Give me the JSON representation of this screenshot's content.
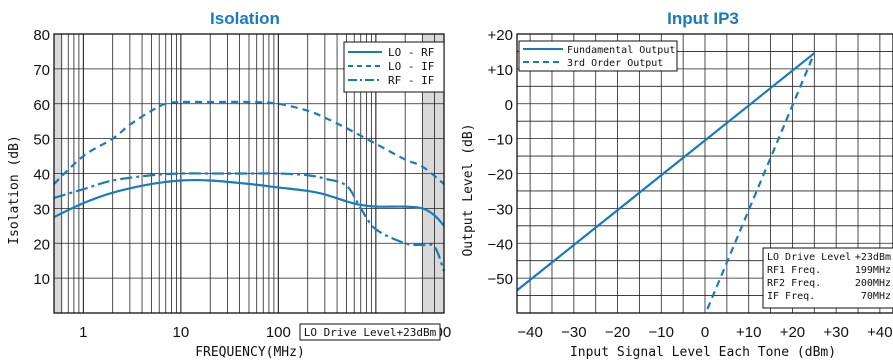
{
  "chart_data": [
    {
      "type": "line",
      "title": "Isolation",
      "xlabel": "FREQUENCY(MHz)",
      "ylabel": "Isolation (dB)",
      "x_scale": "log",
      "xlim": [
        0.5,
        5000
      ],
      "ylim": [
        0,
        80
      ],
      "grid": true,
      "legend_position": "top-right",
      "x_ticks": [
        "1",
        "10",
        "100",
        "1000",
        "4000"
      ],
      "y_ticks": [
        "10",
        "20",
        "30",
        "40",
        "50",
        "60",
        "70",
        "80"
      ],
      "annotation": "LO Drive Level+23dBm",
      "colors": {
        "line": "#1a7abf",
        "shade": "#d9d9d9"
      },
      "series": [
        {
          "name": "LO - RF",
          "style": "solid",
          "x": [
            0.5,
            1,
            2,
            5,
            10,
            20,
            50,
            100,
            200,
            300,
            500,
            700,
            1000,
            2000,
            3000,
            4000,
            5000
          ],
          "y": [
            27.5,
            31.5,
            34.5,
            37,
            38,
            38,
            37,
            36,
            35,
            34,
            32,
            31,
            30.5,
            30.5,
            30,
            28,
            25
          ]
        },
        {
          "name": "LO - IF",
          "style": "dash",
          "x": [
            0.5,
            1,
            2,
            3,
            5,
            7,
            10,
            20,
            50,
            100,
            200,
            300,
            500,
            1000,
            2000,
            3000,
            5000
          ],
          "y": [
            37,
            45,
            50,
            54,
            58,
            60,
            60.5,
            60.5,
            60.5,
            60,
            58,
            56,
            53,
            48.5,
            44,
            42,
            37
          ]
        },
        {
          "name": "RF - IF",
          "style": "dashdot",
          "x": [
            0.5,
            1,
            2,
            5,
            10,
            20,
            50,
            100,
            200,
            300,
            500,
            700,
            1000,
            2000,
            3000,
            4000,
            5000
          ],
          "y": [
            33,
            35.5,
            38,
            39.5,
            40,
            40,
            40,
            40,
            39.5,
            38.5,
            36.5,
            30,
            24,
            20,
            19.5,
            19,
            12
          ]
        }
      ]
    },
    {
      "type": "line",
      "title": "Input IP3",
      "xlabel": "Input Signal Level Each Tone (dBm)",
      "ylabel": "Output Level (dB)",
      "xlim": [
        -43,
        43
      ],
      "ylim": [
        -60,
        20
      ],
      "grid": true,
      "legend_position": "top-left",
      "x_ticks": [
        "−40",
        "−30",
        "−20",
        "−10",
        "0",
        "+10",
        "+20",
        "+30",
        "+40"
      ],
      "y_ticks": [
        "+20",
        "+10",
        "0",
        "−10",
        "−20",
        "−30",
        "−40",
        "−50"
      ],
      "annotation_rows": [
        [
          "LO Drive Level",
          "+23dBm"
        ],
        [
          "RF1 Freq.",
          "199MHz"
        ],
        [
          "RF2 Freq.",
          "200MHz"
        ],
        [
          "IF Freq.",
          "70MHz"
        ]
      ],
      "colors": {
        "line": "#1a7abf"
      },
      "series": [
        {
          "name": "Fundamental Output",
          "style": "solid",
          "x": [
            -43,
            25
          ],
          "y": [
            -53.5,
            14.5
          ]
        },
        {
          "name": "3rd Order Output",
          "style": "dash",
          "x": [
            -0.5,
            25
          ],
          "y": [
            -62,
            14.5
          ]
        }
      ]
    }
  ]
}
